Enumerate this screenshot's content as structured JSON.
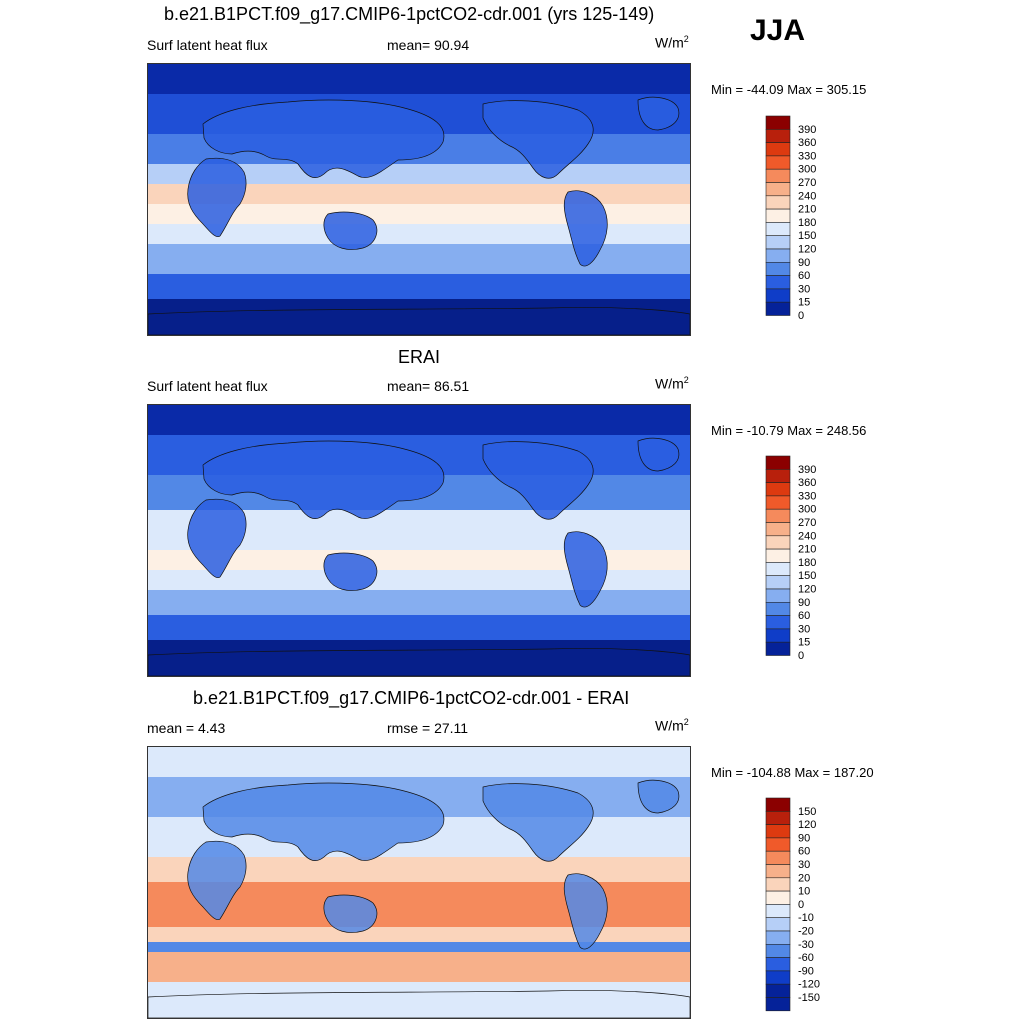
{
  "season": "JJA",
  "panels": [
    {
      "title": "b.e21.B1PCT.f09_g17.CMIP6-1pctCO2-cdr.001 (yrs 125-149)",
      "left_label": "Surf latent heat flux",
      "mid_label": "mean=  90.94",
      "units": "W/m",
      "units_sup": "2",
      "minmax": "Min = -44.09 Max = 305.15",
      "map_kind": "model",
      "colorbar": {
        "labels": [
          "390",
          "360",
          "330",
          "300",
          "270",
          "240",
          "210",
          "180",
          "150",
          "120",
          "90",
          "60",
          "30",
          "15",
          "0"
        ],
        "colors": [
          "#8b0000",
          "#b8200c",
          "#dd3a10",
          "#f05a2a",
          "#f58a5c",
          "#f7b08a",
          "#fad4bb",
          "#fdf0e4",
          "#dce9fb",
          "#b6cff7",
          "#86aef0",
          "#5288e6",
          "#2a5ee0",
          "#0f3dc8",
          "#052299"
        ]
      }
    },
    {
      "title": "ERAI",
      "left_label": "Surf latent heat flux",
      "mid_label": "mean=  86.51",
      "units": "W/m",
      "units_sup": "2",
      "minmax": "Min = -10.79 Max = 248.56",
      "map_kind": "obs",
      "colorbar": {
        "labels": [
          "390",
          "360",
          "330",
          "300",
          "270",
          "240",
          "210",
          "180",
          "150",
          "120",
          "90",
          "60",
          "30",
          "15",
          "0"
        ],
        "colors": [
          "#8b0000",
          "#b8200c",
          "#dd3a10",
          "#f05a2a",
          "#f58a5c",
          "#f7b08a",
          "#fad4bb",
          "#fdf0e4",
          "#dce9fb",
          "#b6cff7",
          "#86aef0",
          "#5288e6",
          "#2a5ee0",
          "#0f3dc8",
          "#052299"
        ]
      }
    },
    {
      "title": "b.e21.B1PCT.f09_g17.CMIP6-1pctCO2-cdr.001 - ERAI",
      "left_label": "mean =   4.43",
      "mid_label": "rmse =  27.11",
      "units": "W/m",
      "units_sup": "2",
      "minmax": "Min = -104.88 Max = 187.20",
      "map_kind": "diff",
      "colorbar": {
        "labels": [
          "150",
          "120",
          "90",
          "60",
          "30",
          "20",
          "10",
          "0",
          "-10",
          "-20",
          "-30",
          "-60",
          "-90",
          "-120",
          "-150"
        ],
        "colors": [
          "#8b0000",
          "#b8200c",
          "#dd3a10",
          "#f05a2a",
          "#f58a5c",
          "#f7b08a",
          "#fad4bb",
          "#fdf0e4",
          "#dce9fb",
          "#b6cff7",
          "#86aef0",
          "#5288e6",
          "#2a5ee0",
          "#0f3dc8",
          "#052299",
          "#052299"
        ]
      }
    }
  ]
}
